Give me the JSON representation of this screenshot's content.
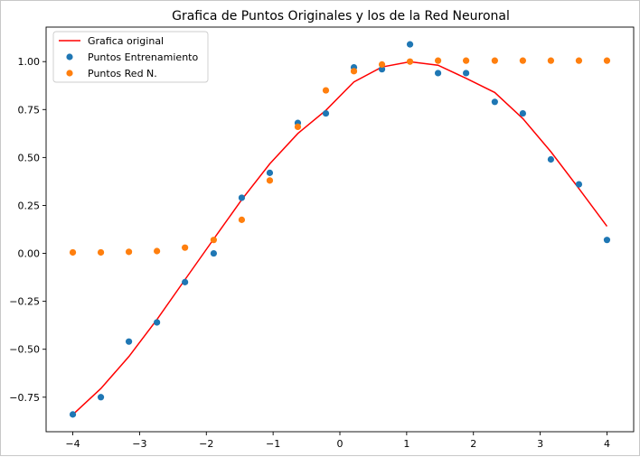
{
  "chart_data": {
    "type": "scatter",
    "title": "Grafica de Puntos Originales y los de la Red Neuronal",
    "xlabel": "",
    "ylabel": "",
    "xlim": [
      -4.4,
      4.4
    ],
    "ylim": [
      -0.93,
      1.18
    ],
    "x_ticks": [
      -4,
      -3,
      -2,
      -1,
      0,
      1,
      2,
      3,
      4
    ],
    "x_tick_labels": [
      "−4",
      "−3",
      "−2",
      "−1",
      "0",
      "1",
      "2",
      "3",
      "4"
    ],
    "y_ticks": [
      -0.75,
      -0.5,
      -0.25,
      0.0,
      0.25,
      0.5,
      0.75,
      1.0
    ],
    "y_tick_labels": [
      "−0.75",
      "−0.50",
      "−0.25",
      "0.00",
      "0.25",
      "0.50",
      "0.75",
      "1.00"
    ],
    "grid": false,
    "legend_position": "top-left",
    "x": [
      -4.0,
      -3.58,
      -3.16,
      -2.74,
      -2.32,
      -1.89,
      -1.47,
      -1.05,
      -0.63,
      -0.21,
      0.21,
      0.63,
      1.05,
      1.47,
      1.89,
      2.32,
      2.74,
      3.16,
      3.58,
      4.0
    ],
    "series": [
      {
        "name": "Grafica original",
        "kind": "line",
        "color": "#ff0000",
        "values": [
          -0.841,
          -0.705,
          -0.538,
          -0.345,
          -0.137,
          0.075,
          0.28,
          0.467,
          0.625,
          0.746,
          0.894,
          0.972,
          0.999,
          0.981,
          0.913,
          0.839,
          0.703,
          0.53,
          0.338,
          0.141
        ]
      },
      {
        "name": "Puntos Entrenamiento",
        "kind": "scatter",
        "color": "#1f77b4",
        "values": [
          -0.84,
          -0.75,
          -0.46,
          -0.36,
          -0.15,
          0.0,
          0.29,
          0.42,
          0.68,
          0.73,
          0.97,
          0.96,
          1.09,
          0.94,
          0.94,
          0.79,
          0.73,
          0.49,
          0.36,
          0.07
        ]
      },
      {
        "name": "Puntos Red N.",
        "kind": "scatter",
        "color": "#ff7f0e",
        "values": [
          0.005,
          0.005,
          0.008,
          0.012,
          0.03,
          0.07,
          0.175,
          0.38,
          0.66,
          0.85,
          0.95,
          0.985,
          1.0,
          1.005,
          1.005,
          1.005,
          1.005,
          1.005,
          1.005,
          1.005
        ]
      }
    ]
  }
}
